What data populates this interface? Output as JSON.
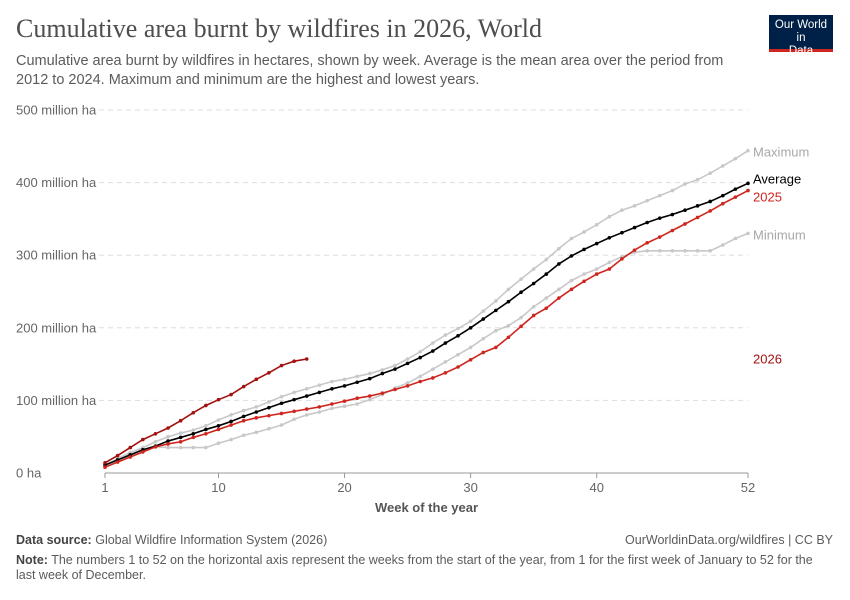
{
  "header": {
    "title": "Cumulative area burnt by wildfires in 2026, World",
    "subtitle": "Cumulative area burnt by wildfires in hectares, shown by week. Average is the mean area over the period from 2012 to 2024. Maximum and minimum are the highest and lowest years.",
    "logo": "Our World in Data"
  },
  "footer": {
    "source_label": "Data source:",
    "source": "Global Wildfire Information System (2026)",
    "url": "OurWorldinData.org/wildfires | CC BY",
    "note_label": "Note:",
    "note": "The numbers 1 to 52 on the horizontal axis represent the weeks from the start of the year, from 1 for the first week of January to 52 for the last week of December."
  },
  "chart_data": {
    "type": "line",
    "xlabel": "Week of the year",
    "ylabel": "",
    "xlim": [
      1,
      52
    ],
    "ylim": [
      0,
      500
    ],
    "x_ticks": [
      1,
      10,
      20,
      30,
      40,
      52
    ],
    "y_ticks": [
      {
        "v": 0,
        "label": "0 ha"
      },
      {
        "v": 100,
        "label": "100 million ha"
      },
      {
        "v": 200,
        "label": "200 million ha"
      },
      {
        "v": 300,
        "label": "300 million ha"
      },
      {
        "v": 400,
        "label": "400 million ha"
      },
      {
        "v": 500,
        "label": "500 million ha"
      }
    ],
    "grid": "horizontal dashed",
    "legend": "inline labels at line ends",
    "series": [
      {
        "name": "Maximum",
        "color": "#c8c8c8",
        "label_color": "#a8a8a8",
        "values": [
          10,
          20,
          28,
          35,
          43,
          50,
          55,
          59,
          65,
          73,
          80,
          86,
          91,
          98,
          105,
          111,
          116,
          121,
          126,
          129,
          133,
          137,
          142,
          148,
          157,
          167,
          179,
          190,
          199,
          209,
          223,
          237,
          253,
          267,
          281,
          294,
          309,
          323,
          332,
          342,
          353,
          362,
          368,
          375,
          382,
          389,
          398,
          404,
          413,
          423,
          433,
          444
        ]
      },
      {
        "name": "Minimum",
        "color": "#c8c8c8",
        "label_color": "#a8a8a8",
        "values": [
          8,
          17,
          24,
          31,
          36,
          35,
          35,
          35,
          35,
          41,
          46,
          52,
          56,
          61,
          66,
          74,
          80,
          84,
          89,
          92,
          95,
          101,
          108,
          117,
          124,
          133,
          143,
          153,
          163,
          173,
          185,
          196,
          203,
          214,
          229,
          241,
          253,
          265,
          274,
          281,
          290,
          298,
          304,
          306,
          306,
          306,
          306,
          306,
          306,
          314,
          323,
          330
        ]
      },
      {
        "name": "Average",
        "color": "#000000",
        "label_color": "#000000",
        "values": [
          11,
          18,
          25,
          32,
          37,
          44,
          49,
          54,
          60,
          65,
          71,
          78,
          84,
          90,
          96,
          101,
          106,
          111,
          116,
          120,
          125,
          130,
          137,
          143,
          151,
          159,
          168,
          179,
          189,
          200,
          212,
          224,
          236,
          249,
          261,
          274,
          288,
          299,
          308,
          316,
          324,
          331,
          338,
          345,
          351,
          356,
          362,
          368,
          374,
          382,
          391,
          399
        ]
      },
      {
        "name": "2025",
        "color": "#ce261e",
        "label_color": "#ce261e",
        "values": [
          8,
          15,
          22,
          29,
          36,
          40,
          43,
          49,
          54,
          60,
          66,
          72,
          76,
          79,
          82,
          85,
          88,
          91,
          95,
          99,
          103,
          106,
          110,
          115,
          120,
          126,
          131,
          138,
          146,
          156,
          166,
          173,
          187,
          202,
          217,
          227,
          241,
          253,
          264,
          274,
          281,
          295,
          307,
          317,
          325,
          334,
          343,
          352,
          361,
          371,
          380,
          389
        ]
      },
      {
        "name": "2026",
        "color": "#a2100f",
        "label_color": "#a2100f",
        "values": [
          14,
          24,
          35,
          46,
          54,
          62,
          72,
          83,
          93,
          101,
          108,
          119,
          129,
          138,
          148,
          154,
          157
        ]
      }
    ]
  }
}
